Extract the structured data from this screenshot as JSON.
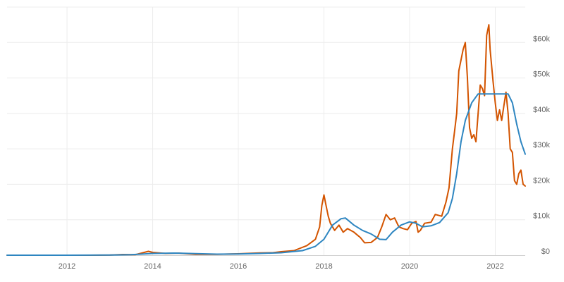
{
  "chart_data": {
    "type": "line",
    "title": "",
    "xlabel": "",
    "ylabel": "",
    "xlim": [
      2010.6,
      2022.7
    ],
    "ylim": [
      0,
      70000
    ],
    "grid": true,
    "y_axis_side": "right",
    "legend": "none",
    "x_ticks": [
      {
        "value": 2012,
        "label": "2012"
      },
      {
        "value": 2014,
        "label": "2014"
      },
      {
        "value": 2016,
        "label": "2016"
      },
      {
        "value": 2018,
        "label": "2018"
      },
      {
        "value": 2020,
        "label": "2020"
      },
      {
        "value": 2022,
        "label": "2022"
      }
    ],
    "y_ticks": [
      {
        "value": 0,
        "label": "$0"
      },
      {
        "value": 10000,
        "label": "$10k"
      },
      {
        "value": 20000,
        "label": "$20k"
      },
      {
        "value": 30000,
        "label": "$30k"
      },
      {
        "value": 40000,
        "label": "$40k"
      },
      {
        "value": 50000,
        "label": "$50k"
      },
      {
        "value": 60000,
        "label": "$60k"
      }
    ],
    "series": [
      {
        "color": "#d35400",
        "points": [
          [
            2010.6,
            0
          ],
          [
            2011.5,
            0
          ],
          [
            2012.5,
            0
          ],
          [
            2013.0,
            50
          ],
          [
            2013.3,
            200
          ],
          [
            2013.6,
            150
          ],
          [
            2013.9,
            1100
          ],
          [
            2014.0,
            800
          ],
          [
            2014.3,
            500
          ],
          [
            2014.6,
            600
          ],
          [
            2015.0,
            250
          ],
          [
            2015.5,
            250
          ],
          [
            2016.0,
            400
          ],
          [
            2016.5,
            650
          ],
          [
            2016.8,
            700
          ],
          [
            2017.0,
            1000
          ],
          [
            2017.3,
            1300
          ],
          [
            2017.6,
            2700
          ],
          [
            2017.8,
            4500
          ],
          [
            2017.9,
            8000
          ],
          [
            2017.95,
            14000
          ],
          [
            2018.0,
            17000
          ],
          [
            2018.05,
            14000
          ],
          [
            2018.1,
            11000
          ],
          [
            2018.15,
            9000
          ],
          [
            2018.25,
            7000
          ],
          [
            2018.35,
            8500
          ],
          [
            2018.45,
            6500
          ],
          [
            2018.55,
            7500
          ],
          [
            2018.7,
            6500
          ],
          [
            2018.85,
            5000
          ],
          [
            2018.95,
            3500
          ],
          [
            2019.1,
            3600
          ],
          [
            2019.25,
            5000
          ],
          [
            2019.35,
            8000
          ],
          [
            2019.45,
            11500
          ],
          [
            2019.55,
            10000
          ],
          [
            2019.65,
            10500
          ],
          [
            2019.75,
            8000
          ],
          [
            2019.85,
            7500
          ],
          [
            2019.95,
            7200
          ],
          [
            2020.05,
            9000
          ],
          [
            2020.15,
            9500
          ],
          [
            2020.2,
            6500
          ],
          [
            2020.25,
            7000
          ],
          [
            2020.35,
            9000
          ],
          [
            2020.5,
            9300
          ],
          [
            2020.6,
            11500
          ],
          [
            2020.75,
            11000
          ],
          [
            2020.85,
            15000
          ],
          [
            2020.92,
            19000
          ],
          [
            2021.0,
            30000
          ],
          [
            2021.05,
            35000
          ],
          [
            2021.1,
            40000
          ],
          [
            2021.15,
            52000
          ],
          [
            2021.25,
            58000
          ],
          [
            2021.3,
            60000
          ],
          [
            2021.35,
            50000
          ],
          [
            2021.4,
            36000
          ],
          [
            2021.45,
            33000
          ],
          [
            2021.5,
            34000
          ],
          [
            2021.55,
            32000
          ],
          [
            2021.6,
            40000
          ],
          [
            2021.65,
            48000
          ],
          [
            2021.7,
            47000
          ],
          [
            2021.75,
            45000
          ],
          [
            2021.8,
            62000
          ],
          [
            2021.85,
            65000
          ],
          [
            2021.88,
            58000
          ],
          [
            2021.95,
            49000
          ],
          [
            2022.0,
            43000
          ],
          [
            2022.05,
            38000
          ],
          [
            2022.1,
            41000
          ],
          [
            2022.15,
            38000
          ],
          [
            2022.2,
            42000
          ],
          [
            2022.25,
            46000
          ],
          [
            2022.3,
            40000
          ],
          [
            2022.35,
            30000
          ],
          [
            2022.4,
            29000
          ],
          [
            2022.45,
            21000
          ],
          [
            2022.5,
            20000
          ],
          [
            2022.55,
            23000
          ],
          [
            2022.6,
            24000
          ],
          [
            2022.65,
            20000
          ],
          [
            2022.7,
            19500
          ]
        ]
      },
      {
        "color": "#2e86c1",
        "points": [
          [
            2010.6,
            0
          ],
          [
            2012.0,
            0
          ],
          [
            2013.0,
            40
          ],
          [
            2013.5,
            150
          ],
          [
            2014.0,
            500
          ],
          [
            2014.5,
            600
          ],
          [
            2015.0,
            450
          ],
          [
            2015.5,
            300
          ],
          [
            2016.0,
            350
          ],
          [
            2016.5,
            500
          ],
          [
            2017.0,
            700
          ],
          [
            2017.5,
            1300
          ],
          [
            2017.8,
            2500
          ],
          [
            2018.0,
            4500
          ],
          [
            2018.2,
            8500
          ],
          [
            2018.4,
            10300
          ],
          [
            2018.5,
            10500
          ],
          [
            2018.7,
            8500
          ],
          [
            2018.9,
            7000
          ],
          [
            2019.1,
            6000
          ],
          [
            2019.3,
            4500
          ],
          [
            2019.45,
            4400
          ],
          [
            2019.6,
            6500
          ],
          [
            2019.8,
            8500
          ],
          [
            2020.0,
            9400
          ],
          [
            2020.15,
            9000
          ],
          [
            2020.3,
            8000
          ],
          [
            2020.5,
            8300
          ],
          [
            2020.7,
            9200
          ],
          [
            2020.9,
            12000
          ],
          [
            2021.0,
            16000
          ],
          [
            2021.1,
            23000
          ],
          [
            2021.2,
            32000
          ],
          [
            2021.3,
            38000
          ],
          [
            2021.45,
            43000
          ],
          [
            2021.6,
            45500
          ],
          [
            2021.75,
            45500
          ],
          [
            2022.0,
            45500
          ],
          [
            2022.3,
            45500
          ],
          [
            2022.4,
            43000
          ],
          [
            2022.5,
            37000
          ],
          [
            2022.6,
            32000
          ],
          [
            2022.7,
            28500
          ]
        ]
      }
    ]
  }
}
